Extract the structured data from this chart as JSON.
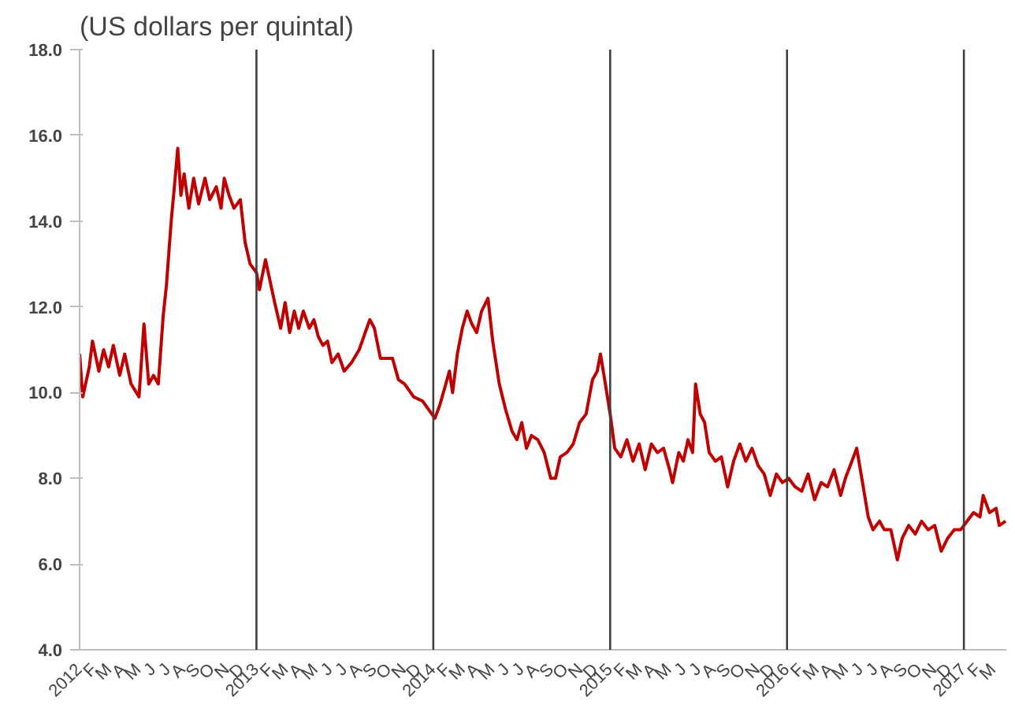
{
  "chart_data": {
    "type": "line",
    "title": "(US dollars per quintal)",
    "x": [
      2012.0,
      2012.018,
      2012.055,
      2012.073,
      2012.109,
      2012.136,
      2012.164,
      2012.191,
      2012.227,
      2012.255,
      2012.291,
      2012.336,
      2012.364,
      2012.391,
      2012.418,
      2012.445,
      2012.473,
      2012.491,
      2012.518,
      2012.536,
      2012.555,
      2012.573,
      2012.591,
      2012.618,
      2012.645,
      2012.673,
      2012.709,
      2012.736,
      2012.773,
      2012.8,
      2012.818,
      2012.845,
      2012.873,
      2012.909,
      2012.936,
      2012.964,
      2013.0,
      2013.017,
      2013.051,
      2013.077,
      2013.103,
      2013.137,
      2013.162,
      2013.188,
      2013.214,
      2013.239,
      2013.265,
      2013.299,
      2013.325,
      2013.35,
      2013.376,
      2013.402,
      2013.427,
      2013.462,
      2013.496,
      2013.538,
      2013.581,
      2013.615,
      2013.641,
      2013.667,
      2013.701,
      2013.735,
      2013.769,
      2013.803,
      2013.838,
      2013.889,
      2013.94,
      2013.974,
      2014.009,
      2014.036,
      2014.064,
      2014.091,
      2014.109,
      2014.136,
      2014.164,
      2014.191,
      2014.218,
      2014.245,
      2014.273,
      2014.309,
      2014.336,
      2014.373,
      2014.409,
      2014.445,
      2014.473,
      2014.5,
      2014.527,
      2014.555,
      2014.591,
      2014.627,
      2014.664,
      2014.691,
      2014.718,
      2014.755,
      2014.791,
      2014.827,
      2014.864,
      2014.9,
      2014.927,
      2014.945,
      2014.973,
      2015.0,
      2015.026,
      2015.06,
      2015.095,
      2015.129,
      2015.164,
      2015.198,
      2015.233,
      2015.267,
      2015.302,
      2015.336,
      2015.353,
      2015.388,
      2015.414,
      2015.44,
      2015.466,
      2015.483,
      2015.509,
      2015.534,
      2015.56,
      2015.595,
      2015.629,
      2015.664,
      2015.698,
      2015.733,
      2015.767,
      2015.802,
      2015.836,
      2015.871,
      2015.905,
      2015.94,
      2015.974,
      2016.009,
      2016.046,
      2016.083,
      2016.119,
      2016.156,
      2016.193,
      2016.229,
      2016.266,
      2016.303,
      2016.33,
      2016.367,
      2016.394,
      2016.431,
      2016.459,
      2016.486,
      2016.523,
      2016.55,
      2016.587,
      2016.624,
      2016.651,
      2016.688,
      2016.725,
      2016.761,
      2016.798,
      2016.835,
      2016.872,
      2016.908,
      2016.945,
      2016.982,
      2017.018,
      2017.055,
      2017.091,
      2017.109,
      2017.145,
      2017.182,
      2017.2,
      2017.236
    ],
    "series": [
      {
        "color": "#c00000",
        "values": [
          10.9,
          9.9,
          10.6,
          11.2,
          10.5,
          11.0,
          10.6,
          11.1,
          10.4,
          10.9,
          10.2,
          9.9,
          11.6,
          10.2,
          10.4,
          10.2,
          11.8,
          12.5,
          14.0,
          14.8,
          15.7,
          14.6,
          15.1,
          14.3,
          15.0,
          14.4,
          15.0,
          14.5,
          14.8,
          14.3,
          15.0,
          14.6,
          14.3,
          14.5,
          13.5,
          13.0,
          12.8,
          12.4,
          13.1,
          12.6,
          12.1,
          11.5,
          12.1,
          11.4,
          11.9,
          11.5,
          11.9,
          11.5,
          11.7,
          11.3,
          11.1,
          11.2,
          10.7,
          10.9,
          10.5,
          10.7,
          11.0,
          11.4,
          11.7,
          11.5,
          10.8,
          10.8,
          10.8,
          10.3,
          10.2,
          9.9,
          9.8,
          9.6,
          9.4,
          9.7,
          10.1,
          10.5,
          10.0,
          10.9,
          11.5,
          11.9,
          11.6,
          11.4,
          11.9,
          12.2,
          11.2,
          10.2,
          9.6,
          9.1,
          8.9,
          9.3,
          8.7,
          9.0,
          8.9,
          8.6,
          8.0,
          8.0,
          8.5,
          8.6,
          8.8,
          9.3,
          9.5,
          10.3,
          10.5,
          10.9,
          10.2,
          9.5,
          8.7,
          8.5,
          8.9,
          8.4,
          8.8,
          8.2,
          8.8,
          8.6,
          8.7,
          8.2,
          7.9,
          8.6,
          8.4,
          8.9,
          8.6,
          10.2,
          9.5,
          9.3,
          8.6,
          8.4,
          8.5,
          7.8,
          8.4,
          8.8,
          8.4,
          8.7,
          8.3,
          8.1,
          7.6,
          8.1,
          7.9,
          8.0,
          7.8,
          7.7,
          8.1,
          7.5,
          7.9,
          7.8,
          8.2,
          7.6,
          8.0,
          8.4,
          8.7,
          7.8,
          7.1,
          6.8,
          7.0,
          6.8,
          6.8,
          6.1,
          6.6,
          6.9,
          6.7,
          7.0,
          6.8,
          6.9,
          6.3,
          6.6,
          6.8,
          6.8,
          7.0,
          7.2,
          7.1,
          7.6,
          7.2,
          7.3,
          6.9,
          7.0
        ]
      }
    ],
    "xlim": [
      2012.0,
      2017.24
    ],
    "xticks": [
      {
        "value": 2012.0,
        "label": "2012"
      },
      {
        "value": 2012.0833,
        "label": "F"
      },
      {
        "value": 2012.1667,
        "label": "M"
      },
      {
        "value": 2012.25,
        "label": "A"
      },
      {
        "value": 2012.3333,
        "label": "M"
      },
      {
        "value": 2012.4167,
        "label": "J"
      },
      {
        "value": 2012.5,
        "label": "J"
      },
      {
        "value": 2012.5833,
        "label": "A"
      },
      {
        "value": 2012.6667,
        "label": "S"
      },
      {
        "value": 2012.75,
        "label": "O"
      },
      {
        "value": 2012.8333,
        "label": "N"
      },
      {
        "value": 2012.9167,
        "label": "D"
      },
      {
        "value": 2013.0,
        "label": "2013"
      },
      {
        "value": 2013.0833,
        "label": "F"
      },
      {
        "value": 2013.1667,
        "label": "M"
      },
      {
        "value": 2013.25,
        "label": "A"
      },
      {
        "value": 2013.3333,
        "label": "M"
      },
      {
        "value": 2013.4167,
        "label": "J"
      },
      {
        "value": 2013.5,
        "label": "J"
      },
      {
        "value": 2013.5833,
        "label": "A"
      },
      {
        "value": 2013.6667,
        "label": "S"
      },
      {
        "value": 2013.75,
        "label": "O"
      },
      {
        "value": 2013.8333,
        "label": "N"
      },
      {
        "value": 2013.9167,
        "label": "D"
      },
      {
        "value": 2014.0,
        "label": "2014"
      },
      {
        "value": 2014.0833,
        "label": "F"
      },
      {
        "value": 2014.1667,
        "label": "M"
      },
      {
        "value": 2014.25,
        "label": "A"
      },
      {
        "value": 2014.3333,
        "label": "M"
      },
      {
        "value": 2014.4167,
        "label": "J"
      },
      {
        "value": 2014.5,
        "label": "J"
      },
      {
        "value": 2014.5833,
        "label": "A"
      },
      {
        "value": 2014.6667,
        "label": "S"
      },
      {
        "value": 2014.75,
        "label": "O"
      },
      {
        "value": 2014.8333,
        "label": "N"
      },
      {
        "value": 2014.9167,
        "label": "D"
      },
      {
        "value": 2015.0,
        "label": "2015"
      },
      {
        "value": 2015.0833,
        "label": "F"
      },
      {
        "value": 2015.1667,
        "label": "M"
      },
      {
        "value": 2015.25,
        "label": "A"
      },
      {
        "value": 2015.3333,
        "label": "M"
      },
      {
        "value": 2015.4167,
        "label": "J"
      },
      {
        "value": 2015.5,
        "label": "J"
      },
      {
        "value": 2015.5833,
        "label": "A"
      },
      {
        "value": 2015.6667,
        "label": "S"
      },
      {
        "value": 2015.75,
        "label": "O"
      },
      {
        "value": 2015.8333,
        "label": "N"
      },
      {
        "value": 2015.9167,
        "label": "D"
      },
      {
        "value": 2016.0,
        "label": "2016"
      },
      {
        "value": 2016.0833,
        "label": "F"
      },
      {
        "value": 2016.1667,
        "label": "M"
      },
      {
        "value": 2016.25,
        "label": "A"
      },
      {
        "value": 2016.3333,
        "label": "M"
      },
      {
        "value": 2016.4167,
        "label": "J"
      },
      {
        "value": 2016.5,
        "label": "J"
      },
      {
        "value": 2016.5833,
        "label": "A"
      },
      {
        "value": 2016.6667,
        "label": "S"
      },
      {
        "value": 2016.75,
        "label": "O"
      },
      {
        "value": 2016.8333,
        "label": "N"
      },
      {
        "value": 2016.9167,
        "label": "D"
      },
      {
        "value": 2017.0,
        "label": "2017"
      },
      {
        "value": 2017.0833,
        "label": "F"
      },
      {
        "value": 2017.1667,
        "label": "M"
      }
    ],
    "ylim": [
      4.0,
      18.0
    ],
    "yticks": [
      {
        "value": 4,
        "label": "4.0"
      },
      {
        "value": 6,
        "label": "6.0"
      },
      {
        "value": 8,
        "label": "8.0"
      },
      {
        "value": 10,
        "label": "10.0"
      },
      {
        "value": 12,
        "label": "12.0"
      },
      {
        "value": 14,
        "label": "14.0"
      },
      {
        "value": 16,
        "label": "16.0"
      },
      {
        "value": 18,
        "label": "18.0"
      }
    ],
    "ref_lines": [
      {
        "axis": "x",
        "value": 2013.0,
        "color": "#404040"
      },
      {
        "axis": "x",
        "value": 2014.0,
        "color": "#404040"
      },
      {
        "axis": "x",
        "value": 2015.0,
        "color": "#404040"
      },
      {
        "axis": "x",
        "value": 2016.0,
        "color": "#404040"
      },
      {
        "axis": "x",
        "value": 2017.0,
        "color": "#404040"
      }
    ],
    "marker": "none",
    "line_style": "solid"
  }
}
